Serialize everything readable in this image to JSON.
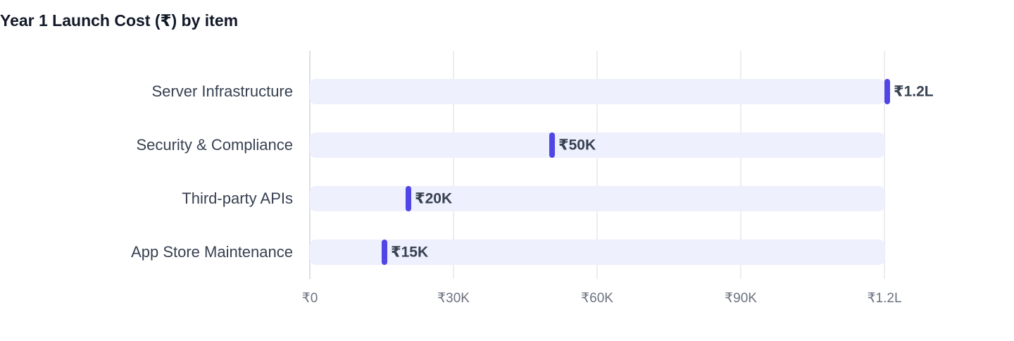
{
  "chart_data": {
    "type": "bar",
    "orientation": "horizontal",
    "title": "Year 1 Launch Cost (₹) by item",
    "categories": [
      "Server Infrastructure",
      "Security & Compliance",
      "Third-party APIs",
      "App Store Maintenance"
    ],
    "values": [
      120000,
      50000,
      20000,
      15000
    ],
    "value_labels": [
      "₹1.2L",
      "₹50K",
      "₹20K",
      "₹15K"
    ],
    "color": "#5046e5",
    "xlim": [
      0,
      120000
    ],
    "xticks": [
      {
        "value": 0,
        "label": "₹0"
      },
      {
        "value": 30000,
        "label": "₹30K"
      },
      {
        "value": 60000,
        "label": "₹60K"
      },
      {
        "value": 90000,
        "label": "₹90K"
      },
      {
        "value": 120000,
        "label": "₹1.2L"
      }
    ],
    "grid": true
  }
}
